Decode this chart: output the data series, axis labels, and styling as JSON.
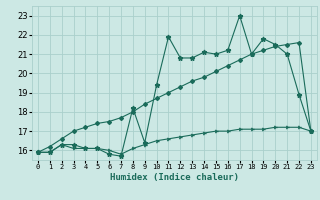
{
  "xlabel": "Humidex (Indice chaleur)",
  "x_values": [
    0,
    1,
    2,
    3,
    4,
    5,
    6,
    7,
    8,
    9,
    10,
    11,
    12,
    13,
    14,
    15,
    16,
    17,
    18,
    19,
    20,
    21,
    22,
    23
  ],
  "line1": [
    15.9,
    15.9,
    16.3,
    16.3,
    16.1,
    16.1,
    15.8,
    15.7,
    18.2,
    16.4,
    19.4,
    21.9,
    20.8,
    20.8,
    21.1,
    21.0,
    21.2,
    23.0,
    21.0,
    21.8,
    21.5,
    21.0,
    18.9,
    17.0
  ],
  "line2": [
    15.9,
    16.2,
    16.6,
    17.0,
    17.2,
    17.4,
    17.5,
    17.7,
    18.0,
    18.4,
    18.7,
    19.0,
    19.3,
    19.6,
    19.8,
    20.1,
    20.4,
    20.7,
    21.0,
    21.2,
    21.4,
    21.5,
    21.6,
    17.0
  ],
  "line3": [
    15.9,
    15.9,
    16.3,
    16.1,
    16.1,
    16.1,
    16.0,
    15.8,
    16.1,
    16.3,
    16.5,
    16.6,
    16.7,
    16.8,
    16.9,
    17.0,
    17.0,
    17.1,
    17.1,
    17.1,
    17.2,
    17.2,
    17.2,
    17.0
  ],
  "line_color": "#1a6b5a",
  "bg_color": "#cce8e4",
  "grid_color": "#aad0cc",
  "ylim": [
    15.5,
    23.5
  ],
  "yticks": [
    16,
    17,
    18,
    19,
    20,
    21,
    22,
    23
  ],
  "xlim": [
    -0.5,
    23.5
  ]
}
